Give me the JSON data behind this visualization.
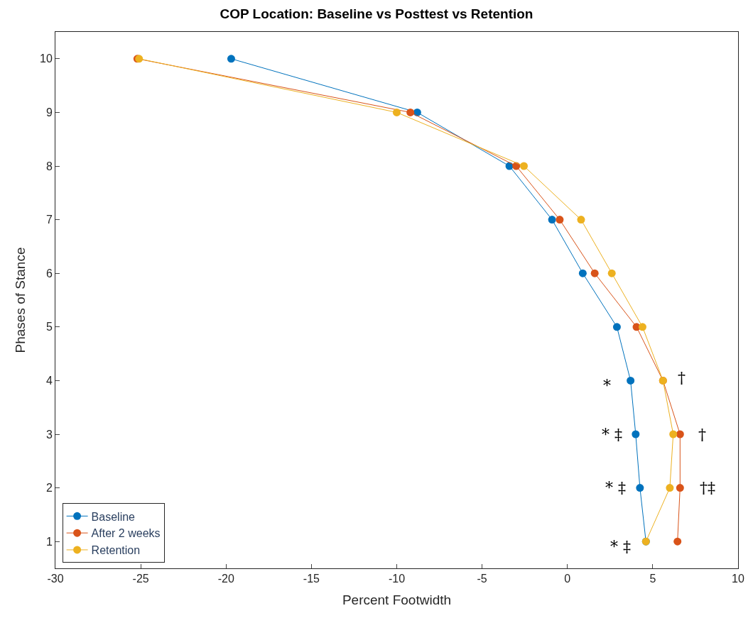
{
  "chart_data": {
    "type": "line",
    "title": "COP Location: Baseline vs Posttest vs Retention",
    "xlabel": "Percent Footwidth",
    "ylabel": "Phases of Stance",
    "xlim": [
      -30,
      10
    ],
    "xticks": [
      -30,
      -25,
      -20,
      -15,
      -10,
      -5,
      0,
      5,
      10
    ],
    "ylim": [
      0.5,
      10.5
    ],
    "yticks": [
      1,
      2,
      3,
      4,
      5,
      6,
      7,
      8,
      9,
      10
    ],
    "legend": "bottom left",
    "marker": "circle",
    "line_style": "solid",
    "series": [
      {
        "name": "Baseline",
        "color": "#0072bd",
        "x": [
          -19.7,
          -8.8,
          -3.4,
          -0.9,
          0.9,
          2.9,
          3.7,
          4.0,
          4.25,
          4.6
        ],
        "values": [
          10,
          9,
          8,
          7,
          6,
          5,
          4,
          3,
          2,
          1
        ]
      },
      {
        "name": "After 2 weeks",
        "color": "#d95319",
        "x": [
          -25.2,
          -9.2,
          -3.0,
          -0.45,
          1.6,
          4.05,
          5.6,
          6.6,
          6.6,
          6.45
        ],
        "values": [
          10,
          9,
          8,
          7,
          6,
          5,
          4,
          3,
          2,
          1
        ]
      },
      {
        "name": "Retention",
        "color": "#edb120",
        "x": [
          -25.1,
          -10.0,
          -2.55,
          0.8,
          2.6,
          4.4,
          5.6,
          6.2,
          6.0,
          4.6
        ],
        "values": [
          10,
          9,
          8,
          7,
          6,
          5,
          4,
          3,
          2,
          1
        ]
      }
    ],
    "annotations": [
      "*",
      "†",
      "* ‡",
      "†",
      "* ‡",
      "†‡",
      "* ‡"
    ]
  }
}
